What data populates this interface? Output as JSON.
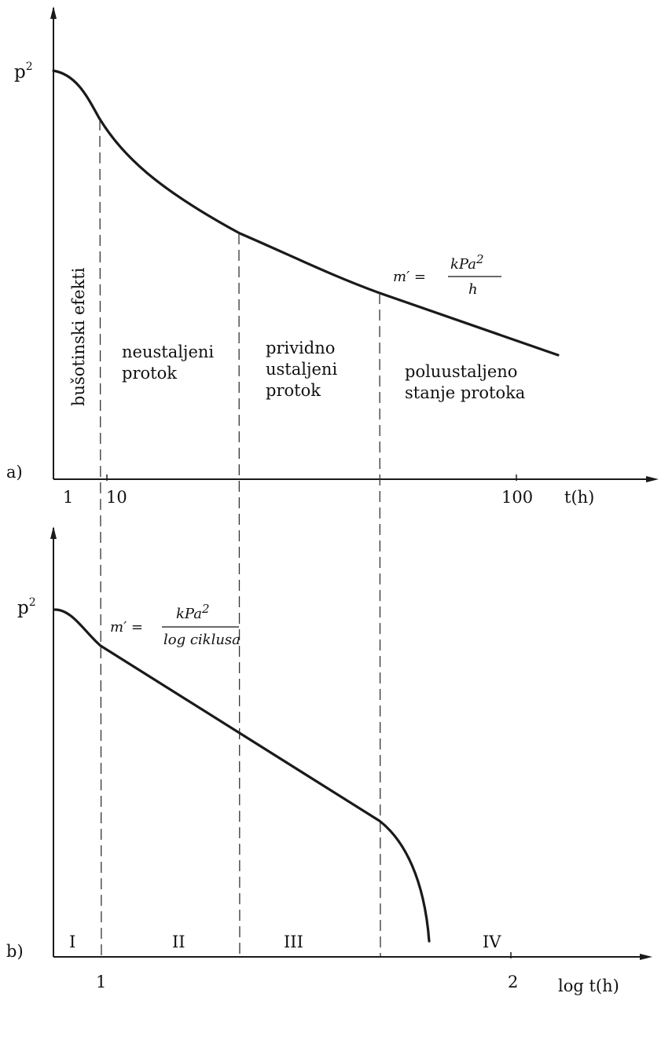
{
  "panel_a": {
    "label": "a)",
    "y_label": "p",
    "y_label_sup": "2",
    "x_label": "t(h)",
    "ticks": [
      "1",
      "10",
      "100"
    ],
    "regions": {
      "wellbore": "bušotinski efekti",
      "transient": [
        "neustaljeni",
        "protok"
      ],
      "pseudo_steady": [
        "prividno",
        "ustaljeni",
        "protok"
      ],
      "semi_steady": [
        "poluustaljeno",
        "stanje protoka"
      ]
    },
    "formula": {
      "lhs": "m′ =",
      "numerator": "kPa",
      "numerator_sup": "2",
      "denominator": "h"
    }
  },
  "panel_b": {
    "label": "b)",
    "y_label": "p",
    "y_label_sup": "2",
    "x_label": "log t(h)",
    "ticks": [
      "1",
      "2"
    ],
    "regions": [
      "I",
      "II",
      "III",
      "IV"
    ],
    "formula": {
      "lhs": "m′ =",
      "numerator": "kPa",
      "numerator_sup": "2",
      "denominator": "log ciklusa"
    }
  }
}
